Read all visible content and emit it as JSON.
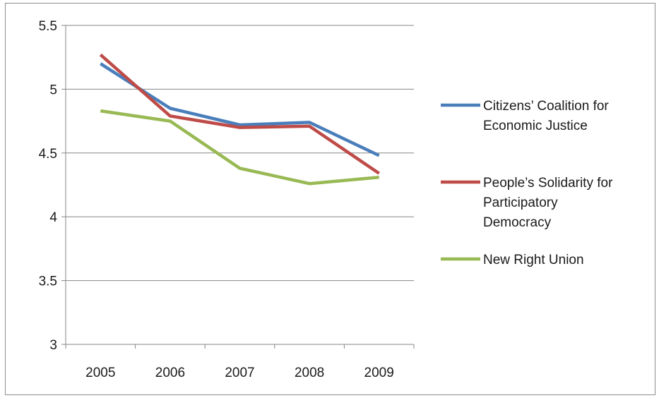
{
  "chart_data": {
    "type": "line",
    "title": "",
    "xlabel": "",
    "ylabel": "",
    "categories": [
      "2005",
      "2006",
      "2007",
      "2008",
      "2009"
    ],
    "ylim": [
      3,
      5.5
    ],
    "yticks": [
      "3",
      "3.5",
      "4",
      "4.5",
      "5",
      "5.5"
    ],
    "grid": "horizontal",
    "legend_position": "right",
    "series": [
      {
        "name_lines": [
          "Citizens’ Coalition for",
          "Economic Justice"
        ],
        "color": "#4a7ebb",
        "values": [
          5.2,
          4.85,
          4.72,
          4.74,
          4.48
        ]
      },
      {
        "name_lines": [
          "People’s Solidarity for",
          "Participatory",
          "Democracy"
        ],
        "color": "#be4b48",
        "values": [
          5.27,
          4.79,
          4.7,
          4.71,
          4.34
        ]
      },
      {
        "name_lines": [
          "New Right Union"
        ],
        "color": "#98b954",
        "values": [
          4.83,
          4.75,
          4.38,
          4.26,
          4.31
        ]
      }
    ]
  }
}
